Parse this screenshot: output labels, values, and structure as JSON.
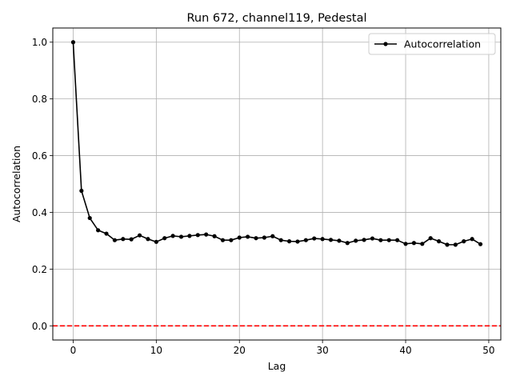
{
  "chart_data": {
    "type": "line",
    "title": "Run 672, channel119, Pedestal",
    "xlabel": "Lag",
    "ylabel": "Autocorrelation",
    "xlim": [
      -2.45,
      51.45
    ],
    "ylim": [
      -0.05,
      1.05
    ],
    "x_ticks": [
      0,
      10,
      20,
      30,
      40,
      50
    ],
    "y_ticks": [
      0.0,
      0.2,
      0.4,
      0.6,
      0.8,
      1.0
    ],
    "x_tick_labels": [
      "0",
      "10",
      "20",
      "30",
      "40",
      "50"
    ],
    "y_tick_labels": [
      "0.0",
      "0.2",
      "0.4",
      "0.6",
      "0.8",
      "1.0"
    ],
    "grid": true,
    "legend_position": "top-right",
    "series": [
      {
        "name": "Autocorrelation",
        "color": "#000000",
        "marker": "circle",
        "x": [
          0,
          1,
          2,
          3,
          4,
          5,
          6,
          7,
          8,
          9,
          10,
          11,
          12,
          13,
          14,
          15,
          16,
          17,
          18,
          19,
          20,
          21,
          22,
          23,
          24,
          25,
          26,
          27,
          28,
          29,
          30,
          31,
          32,
          33,
          34,
          35,
          36,
          37,
          38,
          39,
          40,
          41,
          42,
          43,
          44,
          45,
          46,
          47,
          48,
          49
        ],
        "values": [
          1.0,
          0.476,
          0.38,
          0.337,
          0.325,
          0.302,
          0.306,
          0.305,
          0.319,
          0.306,
          0.296,
          0.309,
          0.317,
          0.314,
          0.317,
          0.32,
          0.322,
          0.316,
          0.302,
          0.302,
          0.311,
          0.314,
          0.309,
          0.311,
          0.316,
          0.302,
          0.298,
          0.297,
          0.302,
          0.308,
          0.306,
          0.303,
          0.3,
          0.292,
          0.3,
          0.303,
          0.308,
          0.302,
          0.302,
          0.302,
          0.289,
          0.292,
          0.289,
          0.309,
          0.298,
          0.286,
          0.286,
          0.298,
          0.306,
          0.288
        ]
      }
    ],
    "reference_line": {
      "y": 0.0,
      "color": "#ff0000",
      "style": "dashed"
    }
  }
}
